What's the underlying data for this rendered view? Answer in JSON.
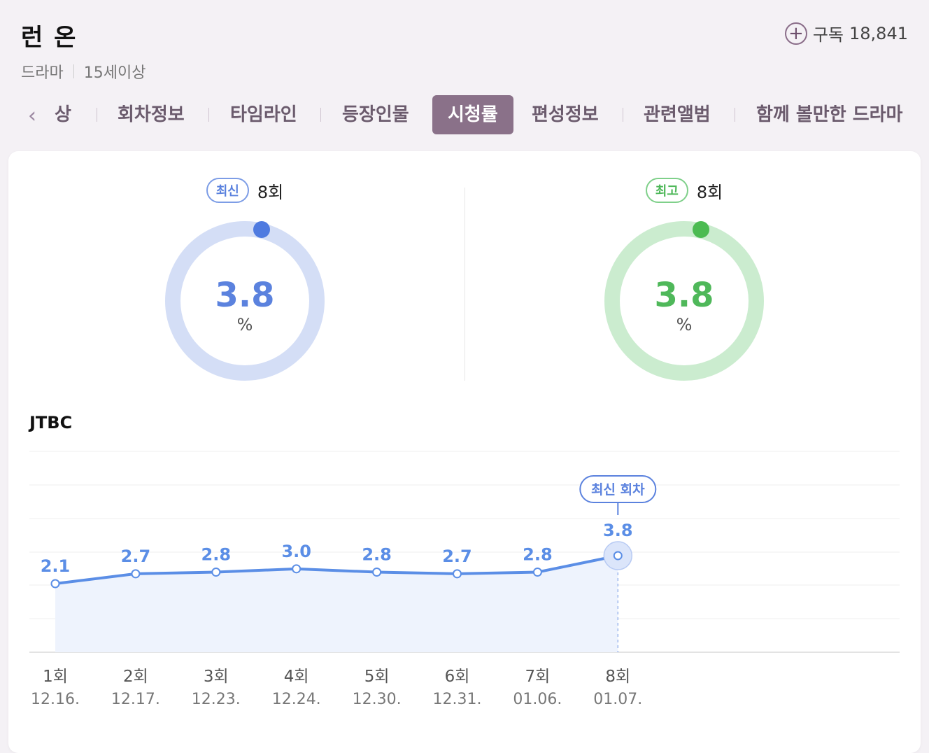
{
  "header": {
    "title": "런 온",
    "genre": "드라마",
    "rating": "15세이상",
    "subscribe_label": "구독",
    "subscribe_count": "18,841"
  },
  "tabs": [
    {
      "label": "상",
      "active": false
    },
    {
      "label": "회차정보",
      "active": false
    },
    {
      "label": "타임라인",
      "active": false
    },
    {
      "label": "등장인물",
      "active": false
    },
    {
      "label": "시청률",
      "active": true
    },
    {
      "label": "편성정보",
      "active": false
    },
    {
      "label": "관련앨범",
      "active": false
    },
    {
      "label": "함께 볼만한 드라마",
      "active": false
    }
  ],
  "latest": {
    "badge": "최신",
    "episode": "8회",
    "value": "3.8",
    "unit": "%",
    "color": "#5b82de"
  },
  "best": {
    "badge": "최고",
    "episode": "8회",
    "value": "3.8",
    "unit": "%",
    "color": "#4fb85a"
  },
  "chart_data": {
    "type": "line",
    "title": "JTBC",
    "categories": [
      "1회",
      "2회",
      "3회",
      "4회",
      "5회",
      "6회",
      "7회",
      "8회"
    ],
    "dates": [
      "12.16.",
      "12.17.",
      "12.23.",
      "12.24.",
      "12.30.",
      "12.31.",
      "01.06.",
      "01.07."
    ],
    "series": [
      {
        "values": [
          2.1,
          2.7,
          2.8,
          3.0,
          2.8,
          2.7,
          2.8,
          3.8
        ]
      }
    ],
    "value_labels": [
      "2.1",
      "2.7",
      "2.8",
      "3.0",
      "2.8",
      "2.7",
      "2.8",
      "3.8"
    ],
    "highlight_label": "최신 회차",
    "highlight_index": 7,
    "grid": true,
    "line_color": "#5b8ee6",
    "fill_color": "#eef3fd"
  }
}
